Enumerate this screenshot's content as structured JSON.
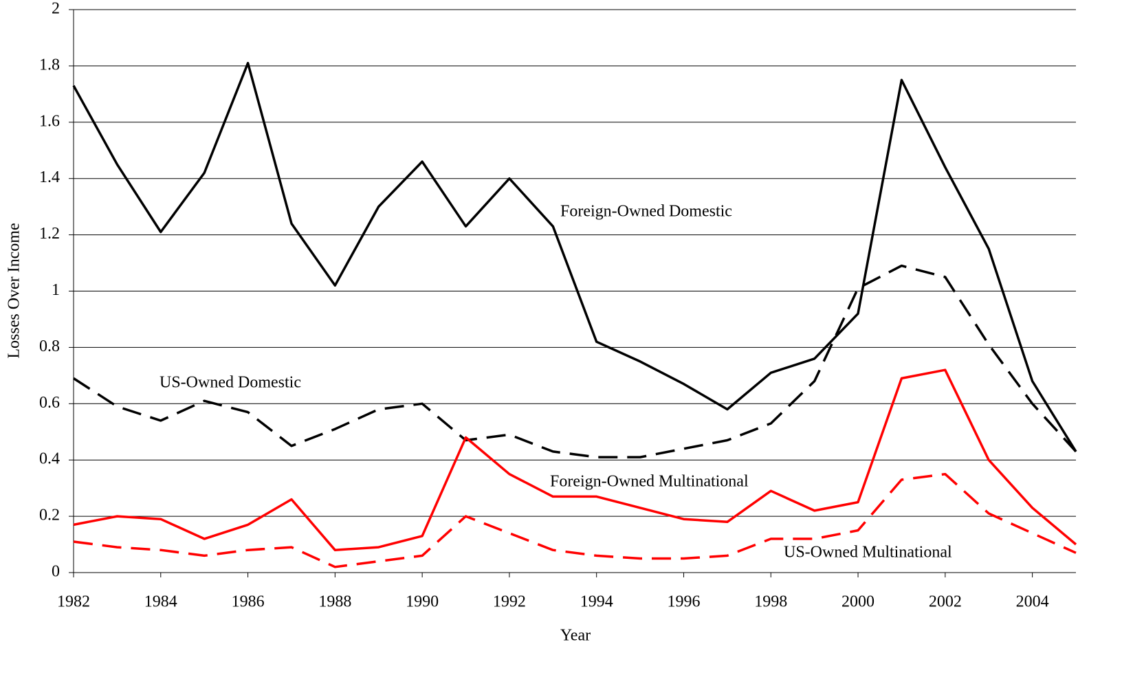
{
  "chart_data": {
    "type": "line",
    "x_label": "Year",
    "y_label": "Losses Over Income",
    "x": [
      1982,
      1983,
      1984,
      1985,
      1986,
      1987,
      1988,
      1989,
      1990,
      1991,
      1992,
      1993,
      1994,
      1995,
      1996,
      1997,
      1998,
      1999,
      2000,
      2001,
      2002,
      2003,
      2004,
      2005
    ],
    "xlim": [
      1982,
      2005
    ],
    "xticks": [
      1982,
      1984,
      1986,
      1988,
      1990,
      1992,
      1994,
      1996,
      1998,
      2000,
      2002,
      2004
    ],
    "ylim": [
      0,
      2
    ],
    "yticks": [
      0,
      0.2,
      0.4,
      0.6,
      0.8,
      1,
      1.2,
      1.4,
      1.6,
      1.8,
      2
    ],
    "grid": true,
    "series": [
      {
        "name": "Foreign-Owned Domestic",
        "color": "#000000",
        "line_style": "solid",
        "values": [
          1.73,
          1.45,
          1.21,
          1.42,
          1.81,
          1.24,
          1.02,
          1.3,
          1.46,
          1.23,
          1.4,
          1.23,
          0.82,
          0.75,
          0.67,
          0.58,
          0.71,
          0.76,
          0.92,
          1.75,
          1.44,
          1.15,
          0.68,
          0.43
        ]
      },
      {
        "name": "US-Owned Domestic",
        "color": "#000000",
        "line_style": "dashed",
        "values": [
          0.69,
          0.59,
          0.54,
          0.61,
          0.57,
          0.45,
          0.51,
          0.58,
          0.6,
          0.47,
          0.49,
          0.43,
          0.41,
          0.41,
          0.44,
          0.47,
          0.53,
          0.68,
          1.01,
          1.09,
          1.05,
          0.81,
          0.6,
          0.43
        ]
      },
      {
        "name": "Foreign-Owned Multinational",
        "color": "#ff0000",
        "line_style": "solid",
        "values": [
          0.17,
          0.2,
          0.19,
          0.12,
          0.17,
          0.26,
          0.08,
          0.09,
          0.13,
          0.48,
          0.35,
          0.27,
          0.27,
          0.23,
          0.19,
          0.18,
          0.29,
          0.22,
          0.25,
          0.69,
          0.72,
          0.4,
          0.23,
          0.1
        ]
      },
      {
        "name": "US-Owned Multinational",
        "color": "#ff0000",
        "line_style": "dashed",
        "values": [
          0.11,
          0.09,
          0.08,
          0.06,
          0.08,
          0.09,
          0.02,
          0.04,
          0.06,
          0.2,
          0.14,
          0.08,
          0.06,
          0.05,
          0.05,
          0.06,
          0.12,
          0.12,
          0.15,
          0.33,
          0.35,
          0.21,
          0.14,
          0.07
        ]
      }
    ]
  }
}
